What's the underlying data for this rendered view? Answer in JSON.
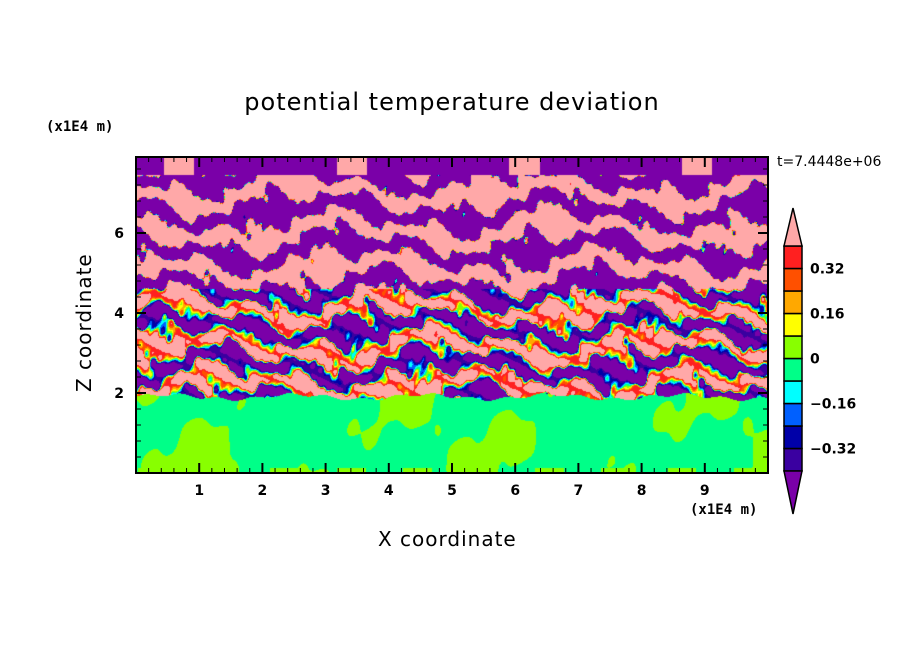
{
  "chart_data": {
    "type": "heatmap",
    "title": "potential temperature deviation",
    "xlabel": "X coordinate",
    "ylabel": "Z coordinate",
    "x_unit": "(x1E4 m)",
    "y_unit": "(x1E4 m)",
    "annotation": "t=7.4448e+06",
    "xlim": [
      0,
      10
    ],
    "ylim": [
      0,
      7.9
    ],
    "x_ticks": [
      "1",
      "2",
      "3",
      "4",
      "5",
      "6",
      "7",
      "8",
      "9"
    ],
    "y_ticks": [
      "2",
      "4",
      "6"
    ],
    "colorbar": {
      "levels": [
        -0.4,
        -0.32,
        -0.24,
        -0.16,
        -0.08,
        0,
        0.08,
        0.16,
        0.24,
        0.32,
        0.4
      ],
      "tick_labels": [
        "0.32",
        "0.16",
        "0",
        "−0.16",
        "−0.32"
      ],
      "tick_values": [
        0.32,
        0.16,
        0,
        -0.16,
        -0.32
      ],
      "colors": [
        "#7a00a8",
        "#3a00a0",
        "#0000a8",
        "#0060ff",
        "#00ffff",
        "#00ff88",
        "#88ff00",
        "#ffff00",
        "#ffa800",
        "#ff5000",
        "#ff2020",
        "#ffa8a8"
      ],
      "extend": "both"
    },
    "field_description_regions": [
      {
        "z_range": [
          0,
          1.9
        ],
        "values": "near zero (-0.08 to 0.08)"
      },
      {
        "z_range": [
          1.9,
          4.6
        ],
        "values": "turbulent layer, full range"
      },
      {
        "z_range": [
          4.6,
          7.9
        ],
        "values": "alternating bands above 0.4 and below -0.4"
      }
    ]
  }
}
